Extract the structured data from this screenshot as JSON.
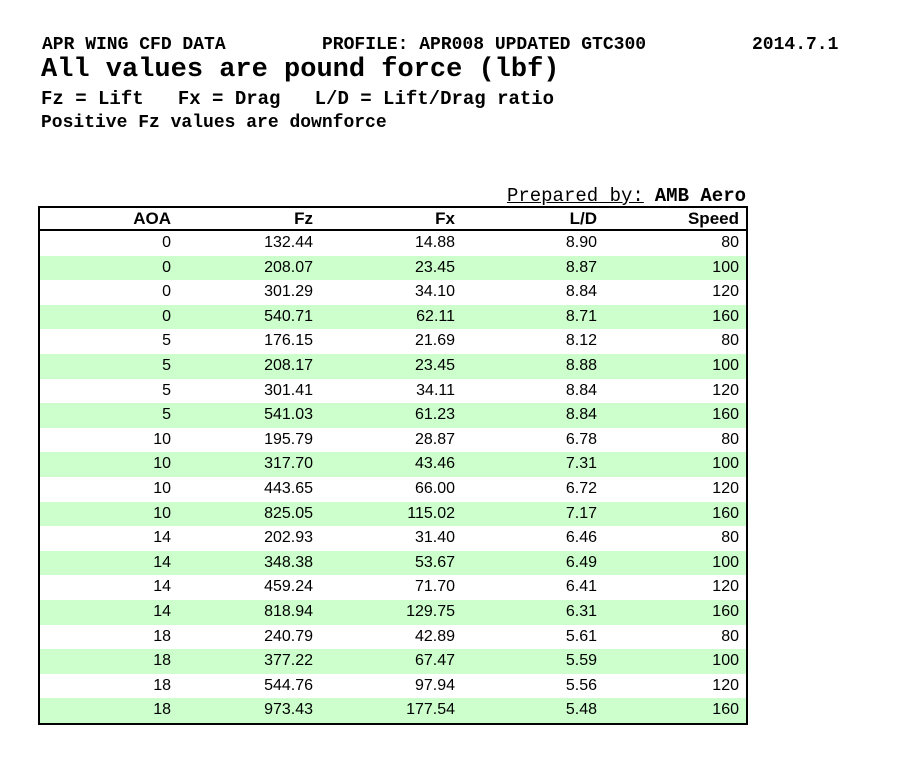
{
  "header": {
    "title": "APR WING CFD DATA",
    "profile": "PROFILE: APR008 UPDATED GTC300",
    "date": "2014.7.1",
    "subtitle": "All values are pound force (lbf)",
    "legend": "Fz = Lift   Fx = Drag   L/D = Lift/Drag ratio",
    "note": "Positive Fz values are downforce"
  },
  "prepared_by": {
    "label": "Prepared by:",
    "value": "AMB Aero"
  },
  "colors": {
    "row_stripe_green": "#ccffcc",
    "border": "#000000",
    "text": "#000000",
    "background": "#ffffff"
  },
  "table": {
    "columns": [
      "AOA",
      "Fz",
      "Fx",
      "L/D",
      "Speed"
    ],
    "rows": [
      [
        "0",
        "132.44",
        "14.88",
        "8.90",
        "80"
      ],
      [
        "0",
        "208.07",
        "23.45",
        "8.87",
        "100"
      ],
      [
        "0",
        "301.29",
        "34.10",
        "8.84",
        "120"
      ],
      [
        "0",
        "540.71",
        "62.11",
        "8.71",
        "160"
      ],
      [
        "5",
        "176.15",
        "21.69",
        "8.12",
        "80"
      ],
      [
        "5",
        "208.17",
        "23.45",
        "8.88",
        "100"
      ],
      [
        "5",
        "301.41",
        "34.11",
        "8.84",
        "120"
      ],
      [
        "5",
        "541.03",
        "61.23",
        "8.84",
        "160"
      ],
      [
        "10",
        "195.79",
        "28.87",
        "6.78",
        "80"
      ],
      [
        "10",
        "317.70",
        "43.46",
        "7.31",
        "100"
      ],
      [
        "10",
        "443.65",
        "66.00",
        "6.72",
        "120"
      ],
      [
        "10",
        "825.05",
        "115.02",
        "7.17",
        "160"
      ],
      [
        "14",
        "202.93",
        "31.40",
        "6.46",
        "80"
      ],
      [
        "14",
        "348.38",
        "53.67",
        "6.49",
        "100"
      ],
      [
        "14",
        "459.24",
        "71.70",
        "6.41",
        "120"
      ],
      [
        "14",
        "818.94",
        "129.75",
        "6.31",
        "160"
      ],
      [
        "18",
        "240.79",
        "42.89",
        "5.61",
        "80"
      ],
      [
        "18",
        "377.22",
        "67.47",
        "5.59",
        "100"
      ],
      [
        "18",
        "544.76",
        "97.94",
        "5.56",
        "120"
      ],
      [
        "18",
        "973.43",
        "177.54",
        "5.48",
        "160"
      ]
    ]
  }
}
